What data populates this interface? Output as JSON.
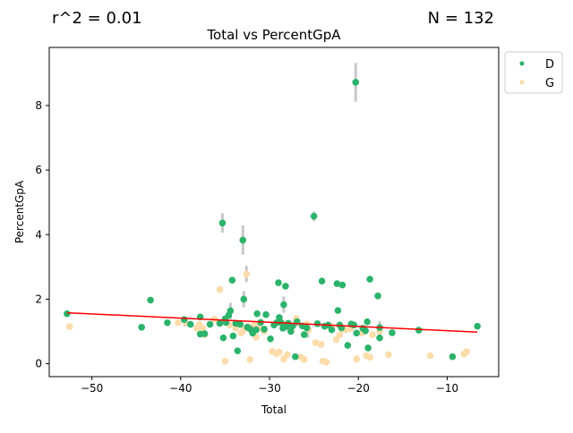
{
  "stats": {
    "r2": "r^2 = 0.01",
    "n": "N = 132"
  },
  "colors": {
    "D": "#2bb36b",
    "G": "#fcdcaa",
    "fit": "#ff0000",
    "errorbar": "#c8c8c8"
  },
  "chart_data": {
    "type": "scatter",
    "title": "Total vs PercentGpA",
    "xlabel": "Total",
    "ylabel": "PercentGpA",
    "xlim": [
      -54.8,
      -4.2
    ],
    "ylim": [
      -0.4,
      9.8
    ],
    "xticks": [
      -50,
      -40,
      -30,
      -20,
      -10
    ],
    "yticks": [
      0,
      2,
      4,
      6,
      8
    ],
    "xtick_labels": [
      "−50",
      "−40",
      "−30",
      "−20",
      "−10"
    ],
    "ytick_labels": [
      "0",
      "2",
      "4",
      "6",
      "8"
    ],
    "grid": false,
    "legend": {
      "placement": "outside-top-right",
      "entries": [
        "D",
        "G"
      ]
    },
    "fit_line": {
      "x": [
        -52.8,
        -6.6
      ],
      "y": [
        1.58,
        0.98
      ]
    },
    "series": [
      {
        "name": "D",
        "points": [
          [
            -52.8,
            1.55
          ],
          [
            -44.4,
            1.13
          ],
          [
            -43.4,
            1.97
          ],
          [
            -41.5,
            1.27
          ],
          [
            -39.6,
            1.37
          ],
          [
            -38.9,
            1.22
          ],
          [
            -37.8,
            1.45
          ],
          [
            -37.8,
            0.92
          ],
          [
            -37.3,
            0.93
          ],
          [
            -36.7,
            1.22
          ],
          [
            -35.6,
            1.25
          ],
          [
            -35.3,
            4.36
          ],
          [
            -35.2,
            0.8
          ],
          [
            -35.0,
            1.39
          ],
          [
            -34.9,
            1.28
          ],
          [
            -34.6,
            1.5
          ],
          [
            -34.4,
            1.64
          ],
          [
            -34.2,
            2.59
          ],
          [
            -34.1,
            0.86
          ],
          [
            -33.8,
            1.25
          ],
          [
            -33.6,
            0.4
          ],
          [
            -33.3,
            1.22
          ],
          [
            -33.0,
            3.83
          ],
          [
            -32.9,
            2.0
          ],
          [
            -32.5,
            1.13
          ],
          [
            -32.2,
            1.08
          ],
          [
            -31.9,
            0.95
          ],
          [
            -31.5,
            1.05
          ],
          [
            -31.4,
            1.55
          ],
          [
            -31.0,
            1.28
          ],
          [
            -30.6,
            1.07
          ],
          [
            -30.4,
            1.52
          ],
          [
            -29.9,
            0.77
          ],
          [
            -29.5,
            1.2
          ],
          [
            -29.2,
            1.27
          ],
          [
            -29.0,
            2.51
          ],
          [
            -28.9,
            1.43
          ],
          [
            -28.7,
            1.27
          ],
          [
            -28.5,
            1.1
          ],
          [
            -28.4,
            1.83
          ],
          [
            -28.2,
            2.4
          ],
          [
            -28.1,
            1.15
          ],
          [
            -27.9,
            1.25
          ],
          [
            -27.6,
            1.0
          ],
          [
            -27.4,
            1.17
          ],
          [
            -27.1,
            0.22
          ],
          [
            -26.9,
            1.3
          ],
          [
            -26.3,
            1.17
          ],
          [
            -26.1,
            0.9
          ],
          [
            -25.8,
            1.11
          ],
          [
            -25.0,
            4.57
          ],
          [
            -24.6,
            1.24
          ],
          [
            -24.1,
            2.56
          ],
          [
            -23.8,
            1.16
          ],
          [
            -23.4,
            1.2
          ],
          [
            -23.0,
            1.05
          ],
          [
            -22.4,
            2.48
          ],
          [
            -22.3,
            1.65
          ],
          [
            -22.1,
            1.2
          ],
          [
            -21.9,
            1.11
          ],
          [
            -21.8,
            2.44
          ],
          [
            -21.2,
            0.57
          ],
          [
            -20.8,
            1.23
          ],
          [
            -20.5,
            1.2
          ],
          [
            -20.2,
            0.95
          ],
          [
            -19.5,
            1.1
          ],
          [
            -19.2,
            1.02
          ],
          [
            -19.0,
            1.3
          ],
          [
            -18.9,
            0.49
          ],
          [
            -18.7,
            2.62
          ],
          [
            -17.8,
            2.1
          ],
          [
            -17.6,
            1.12
          ],
          [
            -17.6,
            0.8
          ],
          [
            -16.2,
            0.96
          ],
          [
            -13.2,
            1.04
          ],
          [
            -9.4,
            0.22
          ],
          [
            -6.6,
            1.16
          ],
          [
            -20.3,
            8.72
          ]
        ],
        "errors": [
          [
            -35.3,
            0.3
          ],
          [
            -33.0,
            0.45
          ],
          [
            -25.0,
            0.15
          ],
          [
            -20.3,
            0.6
          ],
          [
            -17.6,
            0.2
          ],
          [
            -32.9,
            0.25
          ],
          [
            -28.4,
            0.25
          ],
          [
            -25.7,
            0.2
          ],
          [
            -34.4,
            0.25
          ],
          [
            -26.9,
            0.15
          ]
        ]
      },
      {
        "name": "G",
        "points": [
          [
            -52.5,
            1.15
          ],
          [
            -40.3,
            1.27
          ],
          [
            -39.5,
            1.3
          ],
          [
            -38.2,
            1.1
          ],
          [
            -37.9,
            1.22
          ],
          [
            -37.5,
            1.1
          ],
          [
            -37.3,
            0.9
          ],
          [
            -36.2,
            1.38
          ],
          [
            -35.6,
            2.3
          ],
          [
            -35.0,
            0.08
          ],
          [
            -34.5,
            1.2
          ],
          [
            -33.8,
            1.1
          ],
          [
            -33.2,
            0.95
          ],
          [
            -32.9,
            1.05
          ],
          [
            -32.6,
            2.78
          ],
          [
            -32.4,
            1.15
          ],
          [
            -32.2,
            0.13
          ],
          [
            -31.7,
            1.2
          ],
          [
            -31.5,
            0.82
          ],
          [
            -31.2,
            1.1
          ],
          [
            -30.6,
            1.0
          ],
          [
            -29.7,
            0.38
          ],
          [
            -29.2,
            0.31
          ],
          [
            -28.9,
            0.36
          ],
          [
            -28.6,
            1.25
          ],
          [
            -28.4,
            0.15
          ],
          [
            -28.0,
            0.28
          ],
          [
            -27.5,
            1.12
          ],
          [
            -27.0,
            1.4
          ],
          [
            -26.5,
            0.21
          ],
          [
            -26.1,
            0.13
          ],
          [
            -25.8,
            1.23
          ],
          [
            -25.6,
            1.05
          ],
          [
            -24.8,
            0.65
          ],
          [
            -24.2,
            0.6
          ],
          [
            -24.0,
            0.08
          ],
          [
            -23.6,
            0.05
          ],
          [
            -23.4,
            1.18
          ],
          [
            -23.0,
            1.15
          ],
          [
            -22.5,
            0.75
          ],
          [
            -22.1,
            0.9
          ],
          [
            -21.5,
            1.05
          ],
          [
            -20.9,
            1.08
          ],
          [
            -20.2,
            0.15
          ],
          [
            -19.6,
            0.95
          ],
          [
            -19.3,
            1.05
          ],
          [
            -19.1,
            0.25
          ],
          [
            -18.7,
            0.2
          ],
          [
            -18.4,
            0.9
          ],
          [
            -17.6,
            1.0
          ],
          [
            -16.6,
            0.28
          ],
          [
            -11.9,
            0.25
          ],
          [
            -8.1,
            0.3
          ],
          [
            -7.8,
            0.37
          ]
        ],
        "errors": [
          [
            -32.6,
            0.25
          ],
          [
            -35.6,
            0.1
          ],
          [
            -39.5,
            0.15
          ]
        ]
      }
    ]
  }
}
